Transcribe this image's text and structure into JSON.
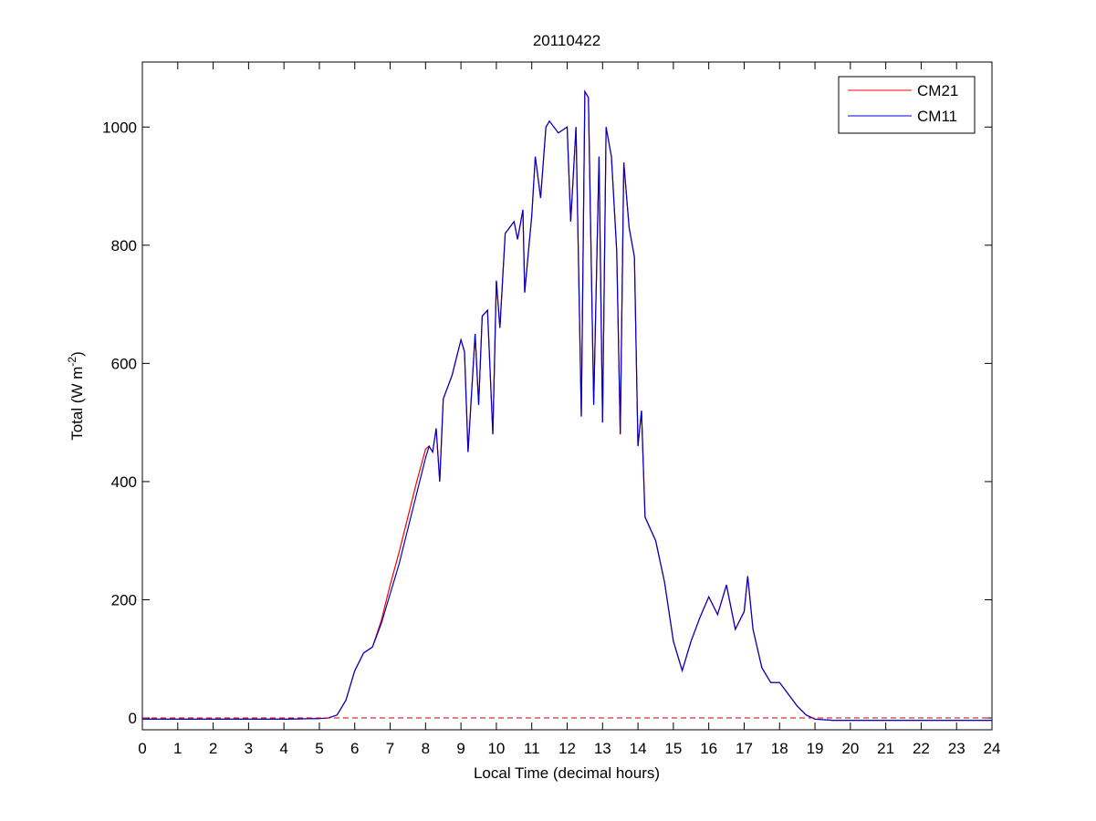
{
  "chart_data": {
    "type": "line",
    "title": "20110422",
    "xlabel": "Local Time (decimal hours)",
    "ylabel": {
      "text": "Total (W m",
      "superscript": "-2",
      "suffix": ")"
    },
    "x": [
      0,
      1,
      2,
      3,
      4,
      5,
      5.25,
      5.5,
      5.75,
      6,
      6.25,
      6.5,
      6.75,
      7,
      7.25,
      7.5,
      7.75,
      8,
      8.1,
      8.2,
      8.3,
      8.4,
      8.5,
      8.75,
      9,
      9.1,
      9.2,
      9.4,
      9.5,
      9.6,
      9.75,
      9.9,
      10,
      10.1,
      10.25,
      10.5,
      10.6,
      10.75,
      10.8,
      11,
      11.1,
      11.25,
      11.4,
      11.5,
      11.75,
      12,
      12.1,
      12.25,
      12.4,
      12.5,
      12.6,
      12.75,
      12.9,
      13,
      13.1,
      13.25,
      13.4,
      13.5,
      13.6,
      13.75,
      13.9,
      14,
      14.1,
      14.2,
      14.5,
      14.75,
      15,
      15.25,
      15.5,
      15.75,
      16,
      16.25,
      16.5,
      16.75,
      17,
      17.1,
      17.25,
      17.5,
      17.75,
      18,
      18.25,
      18.5,
      18.75,
      19,
      19.5,
      20,
      21,
      22,
      23,
      24
    ],
    "series": [
      {
        "name": "CM21",
        "color": "#ff0000",
        "values": [
          -2,
          -2,
          -2,
          -2,
          -2,
          -1,
          0,
          5,
          30,
          80,
          110,
          120,
          165,
          225,
          280,
          340,
          400,
          455,
          460,
          450,
          490,
          400,
          540,
          580,
          640,
          620,
          450,
          650,
          530,
          680,
          690,
          480,
          740,
          660,
          820,
          840,
          810,
          860,
          720,
          850,
          950,
          880,
          1000,
          1010,
          990,
          1000,
          840,
          1000,
          510,
          1060,
          1050,
          530,
          950,
          500,
          1000,
          950,
          790,
          480,
          940,
          830,
          780,
          460,
          520,
          340,
          300,
          230,
          130,
          80,
          130,
          170,
          205,
          175,
          225,
          150,
          180,
          240,
          150,
          85,
          60,
          60,
          40,
          20,
          5,
          -2,
          -4,
          -4,
          -4,
          -4,
          -4,
          -4
        ]
      },
      {
        "name": "CM11",
        "color": "#0000cc",
        "values": [
          -2,
          -2,
          -2,
          -2,
          -2,
          -1,
          0,
          5,
          30,
          80,
          110,
          120,
          160,
          210,
          260,
          320,
          380,
          440,
          460,
          450,
          490,
          400,
          540,
          580,
          640,
          620,
          450,
          650,
          530,
          680,
          690,
          480,
          740,
          660,
          820,
          840,
          810,
          860,
          720,
          850,
          950,
          880,
          1000,
          1010,
          990,
          1000,
          840,
          1000,
          510,
          1060,
          1050,
          530,
          950,
          500,
          1000,
          950,
          790,
          480,
          940,
          830,
          780,
          460,
          520,
          340,
          300,
          230,
          130,
          80,
          130,
          170,
          205,
          175,
          225,
          150,
          180,
          240,
          150,
          85,
          60,
          60,
          40,
          20,
          5,
          -2,
          -4,
          -4,
          -4,
          -4,
          -4,
          -4
        ]
      }
    ],
    "xlim": [
      0,
      24
    ],
    "xticks": [
      0,
      1,
      2,
      3,
      4,
      5,
      6,
      7,
      8,
      9,
      10,
      11,
      12,
      13,
      14,
      15,
      16,
      17,
      18,
      19,
      20,
      21,
      22,
      23,
      24
    ],
    "ylim": [
      -20,
      1110
    ],
    "yticks": [
      0,
      200,
      400,
      600,
      800,
      1000
    ],
    "reference_line": {
      "y": 0,
      "color": "#c00000",
      "style": "dashed"
    },
    "legend": "upper right"
  }
}
